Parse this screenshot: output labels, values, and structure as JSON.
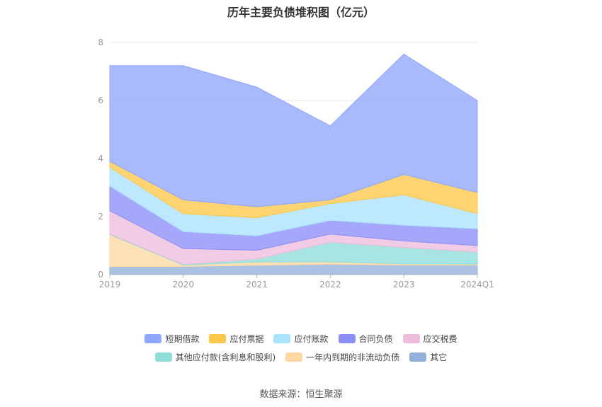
{
  "chart_data": {
    "type": "area",
    "stacked": true,
    "title": "历年主要负债堆积图（亿元）",
    "categories": [
      "2019",
      "2020",
      "2021",
      "2022",
      "2023",
      "2024Q1"
    ],
    "ylim": [
      0,
      8
    ],
    "yticks": [
      "0",
      "2",
      "4",
      "6",
      "8"
    ],
    "grid": true,
    "legend_position": "bottom",
    "series": [
      {
        "name": "其它",
        "color": "#93b0dc",
        "values": [
          0.28,
          0.28,
          0.32,
          0.36,
          0.33,
          0.33
        ]
      },
      {
        "name": "一年内到期的非流动负债",
        "color": "#fdd9a1",
        "values": [
          1.1,
          0.05,
          0.12,
          0.08,
          0.04,
          0.03
        ]
      },
      {
        "name": "其他应付款(含利息和股利)",
        "color": "#8fdcd9",
        "values": [
          0.02,
          0.02,
          0.1,
          0.68,
          0.57,
          0.42
        ]
      },
      {
        "name": "应交税费",
        "color": "#eebcdc",
        "values": [
          0.8,
          0.55,
          0.3,
          0.28,
          0.22,
          0.22
        ]
      },
      {
        "name": "合同负债",
        "color": "#8c8ef8",
        "values": [
          0.85,
          0.58,
          0.5,
          0.47,
          0.54,
          0.58
        ]
      },
      {
        "name": "应付账款",
        "color": "#abe2fc",
        "values": [
          0.65,
          0.62,
          0.62,
          0.58,
          1.05,
          0.52
        ]
      },
      {
        "name": "应付票据",
        "color": "#fdc849",
        "values": [
          0.2,
          0.48,
          0.38,
          0.13,
          0.7,
          0.73
        ]
      },
      {
        "name": "短期借款",
        "color": "#8fa7fb",
        "values": [
          3.3,
          4.62,
          4.12,
          2.55,
          4.15,
          3.17
        ]
      }
    ],
    "legend_rows": [
      [
        "短期借款",
        "应付票据",
        "应付账款",
        "合同负债",
        "应交税费"
      ],
      [
        "其他应付款(含利息和股利)",
        "一年内到期的非流动负债",
        "其它"
      ]
    ]
  },
  "footer": {
    "source": "数据来源：恒生聚源"
  }
}
